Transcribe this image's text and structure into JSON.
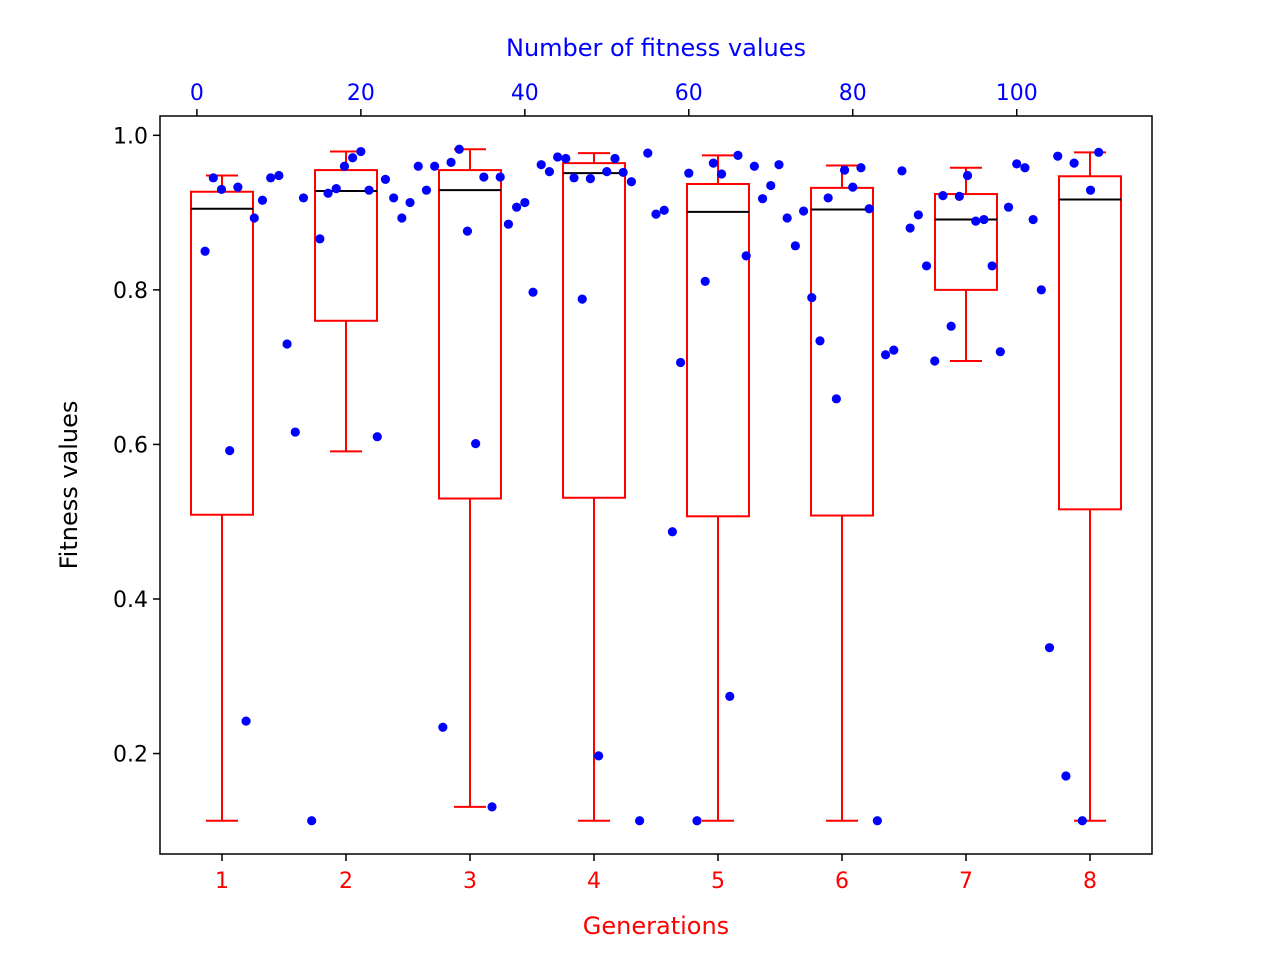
{
  "chart_data": {
    "type": "box",
    "xlabel": "Generations",
    "ylabel": "Fitness values",
    "top_xlabel": "Number of fitness values",
    "colors": {
      "box": "#ff0000",
      "median": "#000000",
      "points": "#0000ff",
      "bottom_axis_text": "#ff0000",
      "top_axis_text": "#0000ff",
      "left_axis_text": "#000000"
    },
    "ylim": [
      0.07,
      1.025
    ],
    "yticks": [
      0.2,
      0.4,
      0.6,
      0.8,
      1.0
    ],
    "ytick_labels": [
      "0.2",
      "0.4",
      "0.6",
      "0.8",
      "1.0"
    ],
    "xlim": [
      0.5,
      8.5
    ],
    "categories": [
      "1",
      "2",
      "3",
      "4",
      "5",
      "6",
      "7",
      "8"
    ],
    "top_xlim": [
      -4.5,
      116.5
    ],
    "top_xticks": [
      0,
      20,
      40,
      60,
      80,
      100
    ],
    "top_xtick_labels": [
      "0",
      "20",
      "40",
      "60",
      "80",
      "100"
    ],
    "boxes": [
      {
        "generation": 1,
        "whisker_low": 0.113,
        "q1": 0.509,
        "median": 0.905,
        "q3": 0.927,
        "whisker_high": 0.948
      },
      {
        "generation": 2,
        "whisker_low": 0.591,
        "q1": 0.76,
        "median": 0.928,
        "q3": 0.955,
        "whisker_high": 0.979
      },
      {
        "generation": 3,
        "whisker_low": 0.131,
        "q1": 0.53,
        "median": 0.929,
        "q3": 0.955,
        "whisker_high": 0.982
      },
      {
        "generation": 4,
        "whisker_low": 0.113,
        "q1": 0.531,
        "median": 0.951,
        "q3": 0.964,
        "whisker_high": 0.977
      },
      {
        "generation": 5,
        "whisker_low": 0.113,
        "q1": 0.507,
        "median": 0.901,
        "q3": 0.937,
        "whisker_high": 0.974
      },
      {
        "generation": 6,
        "whisker_low": 0.113,
        "q1": 0.508,
        "median": 0.904,
        "q3": 0.932,
        "whisker_high": 0.961
      },
      {
        "generation": 7,
        "whisker_low": 0.708,
        "q1": 0.8,
        "median": 0.891,
        "q3": 0.924,
        "whisker_high": 0.958
      },
      {
        "generation": 8,
        "whisker_low": 0.113,
        "q1": 0.516,
        "median": 0.917,
        "q3": 0.947,
        "whisker_high": 0.978
      }
    ],
    "points": [
      [
        1.0,
        0.85
      ],
      [
        2.0,
        0.945
      ],
      [
        3.0,
        0.93
      ],
      [
        4.0,
        0.592
      ],
      [
        5.0,
        0.933
      ],
      [
        6.0,
        0.242
      ],
      [
        7.0,
        0.893
      ],
      [
        8.0,
        0.916
      ],
      [
        9.0,
        0.945
      ],
      [
        10.0,
        0.948
      ],
      [
        11.0,
        0.73
      ],
      [
        12.0,
        0.616
      ],
      [
        13.0,
        0.919
      ],
      [
        14.0,
        0.113
      ],
      [
        15.0,
        0.866
      ],
      [
        16.0,
        0.925
      ],
      [
        17.0,
        0.931
      ],
      [
        18.0,
        0.96
      ],
      [
        19.0,
        0.971
      ],
      [
        20.0,
        0.979
      ],
      [
        21.0,
        0.929
      ],
      [
        22.0,
        0.61
      ],
      [
        23.0,
        0.943
      ],
      [
        24.0,
        0.919
      ],
      [
        25.0,
        0.893
      ],
      [
        26.0,
        0.913
      ],
      [
        27.0,
        0.96
      ],
      [
        28.0,
        0.929
      ],
      [
        29.0,
        0.96
      ],
      [
        30.0,
        0.234
      ],
      [
        31.0,
        0.965
      ],
      [
        32.0,
        0.982
      ],
      [
        33.0,
        0.876
      ],
      [
        34.0,
        0.601
      ],
      [
        35.0,
        0.946
      ],
      [
        36.0,
        0.131
      ],
      [
        37.0,
        0.946
      ],
      [
        38.0,
        0.885
      ],
      [
        39.0,
        0.907
      ],
      [
        40.0,
        0.913
      ],
      [
        41.0,
        0.797
      ],
      [
        42.0,
        0.962
      ],
      [
        43.0,
        0.953
      ],
      [
        44.0,
        0.972
      ],
      [
        45.0,
        0.97
      ],
      [
        46.0,
        0.945
      ],
      [
        47.0,
        0.788
      ],
      [
        48.0,
        0.944
      ],
      [
        49.0,
        0.197
      ],
      [
        50.0,
        0.953
      ],
      [
        51.0,
        0.97
      ],
      [
        52.0,
        0.952
      ],
      [
        53.0,
        0.94
      ],
      [
        54.0,
        0.113
      ],
      [
        55.0,
        0.977
      ],
      [
        56.0,
        0.898
      ],
      [
        57.0,
        0.903
      ],
      [
        58.0,
        0.487
      ],
      [
        59.0,
        0.706
      ],
      [
        60.0,
        0.951
      ],
      [
        61.0,
        0.113
      ],
      [
        62.0,
        0.811
      ],
      [
        63.0,
        0.964
      ],
      [
        64.0,
        0.95
      ],
      [
        65.0,
        0.274
      ],
      [
        66.0,
        0.974
      ],
      [
        67.0,
        0.844
      ],
      [
        68.0,
        0.96
      ],
      [
        69.0,
        0.918
      ],
      [
        70.0,
        0.935
      ],
      [
        71.0,
        0.962
      ],
      [
        72.0,
        0.893
      ],
      [
        73.0,
        0.857
      ],
      [
        74.0,
        0.902
      ],
      [
        75.0,
        0.79
      ],
      [
        76.0,
        0.734
      ],
      [
        77.0,
        0.919
      ],
      [
        78.0,
        0.659
      ],
      [
        79.0,
        0.955
      ],
      [
        80.0,
        0.933
      ],
      [
        81.0,
        0.958
      ],
      [
        82.0,
        0.905
      ],
      [
        83.0,
        0.113
      ],
      [
        84.0,
        0.716
      ],
      [
        85.0,
        0.722
      ],
      [
        86.0,
        0.954
      ],
      [
        87.0,
        0.88
      ],
      [
        88.0,
        0.897
      ],
      [
        89.0,
        0.831
      ],
      [
        90.0,
        0.708
      ],
      [
        91.0,
        0.922
      ],
      [
        92.0,
        0.753
      ],
      [
        93.0,
        0.921
      ],
      [
        94.0,
        0.948
      ],
      [
        95.0,
        0.889
      ],
      [
        96.0,
        0.891
      ],
      [
        97.0,
        0.831
      ],
      [
        98.0,
        0.72
      ],
      [
        99.0,
        0.907
      ],
      [
        100.0,
        0.963
      ],
      [
        101.0,
        0.958
      ],
      [
        102.0,
        0.891
      ],
      [
        103.0,
        0.8
      ],
      [
        104.0,
        0.337
      ],
      [
        105.0,
        0.973
      ],
      [
        106.0,
        0.171
      ],
      [
        107.0,
        0.964
      ],
      [
        108.0,
        0.113
      ],
      [
        109.0,
        0.929
      ],
      [
        110.0,
        0.978
      ]
    ]
  }
}
